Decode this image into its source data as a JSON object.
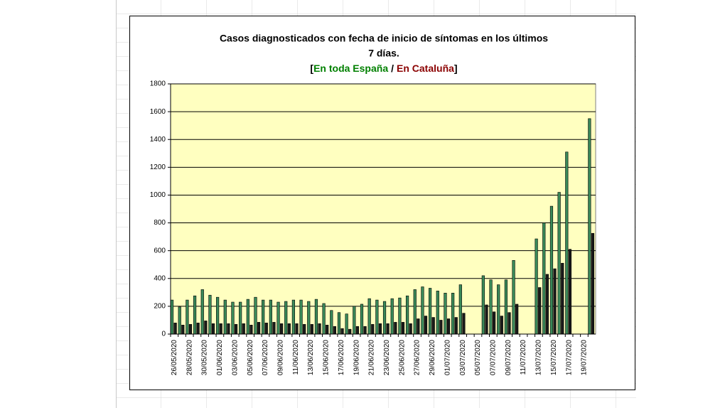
{
  "chart_data": {
    "type": "bar",
    "title_lines": [
      "Casos diagnosticados con fecha de inicio de síntomas en los últimos",
      "7 días."
    ],
    "legend_open": "[",
    "legend_separator": "/",
    "legend_close": "]",
    "categories": [
      "26/05/2020",
      null,
      "28/05/2020",
      null,
      "30/05/2020",
      null,
      "01/06/2020",
      null,
      "03/06/2020",
      null,
      "05/06/2020",
      null,
      "07/06/2020",
      null,
      "09/06/2020",
      null,
      "11/06/2020",
      null,
      "13/06/2020",
      null,
      "15/06/2020",
      null,
      "17/06/2020",
      null,
      "19/06/2020",
      null,
      "21/06/2020",
      null,
      "23/06/2020",
      null,
      "25/06/2020",
      null,
      "27/06/2020",
      null,
      "29/06/2020",
      null,
      "01/07/2020",
      null,
      "03/07/2020",
      null,
      "05/07/2020",
      null,
      "07/07/2020",
      null,
      "09/07/2020",
      null,
      "11/07/2020",
      null,
      "13/07/2020",
      null,
      "15/07/2020",
      null,
      "17/07/2020",
      null,
      "19/07/2020",
      null
    ],
    "series": [
      {
        "name": "En toda España",
        "color": "#3a8a5a",
        "text_color": "#008000",
        "values": [
          245,
          195,
          245,
          275,
          320,
          280,
          265,
          245,
          230,
          230,
          250,
          265,
          245,
          245,
          230,
          235,
          245,
          245,
          235,
          250,
          220,
          170,
          155,
          145,
          200,
          215,
          255,
          245,
          235,
          255,
          260,
          275,
          320,
          340,
          330,
          310,
          295,
          295,
          355,
          null,
          null,
          420,
          390,
          355,
          390,
          530,
          null,
          null,
          685,
          800,
          920,
          1020,
          1310,
          null,
          null,
          1550
        ]
      },
      {
        "name": "En Cataluña",
        "color": "#1a1a1a",
        "text_color": "#8b0000",
        "values": [
          80,
          65,
          70,
          80,
          95,
          75,
          75,
          75,
          70,
          75,
          65,
          85,
          80,
          85,
          75,
          75,
          75,
          70,
          70,
          75,
          65,
          55,
          40,
          35,
          55,
          55,
          70,
          75,
          75,
          85,
          85,
          75,
          110,
          130,
          120,
          100,
          110,
          120,
          150,
          null,
          null,
          210,
          160,
          130,
          155,
          215,
          null,
          null,
          335,
          430,
          470,
          510,
          610,
          null,
          null,
          725
        ]
      }
    ],
    "ylim": [
      0,
      1800
    ],
    "yticks": [
      0,
      200,
      400,
      600,
      800,
      1000,
      1200,
      1400,
      1600,
      1800
    ],
    "grid": true
  }
}
